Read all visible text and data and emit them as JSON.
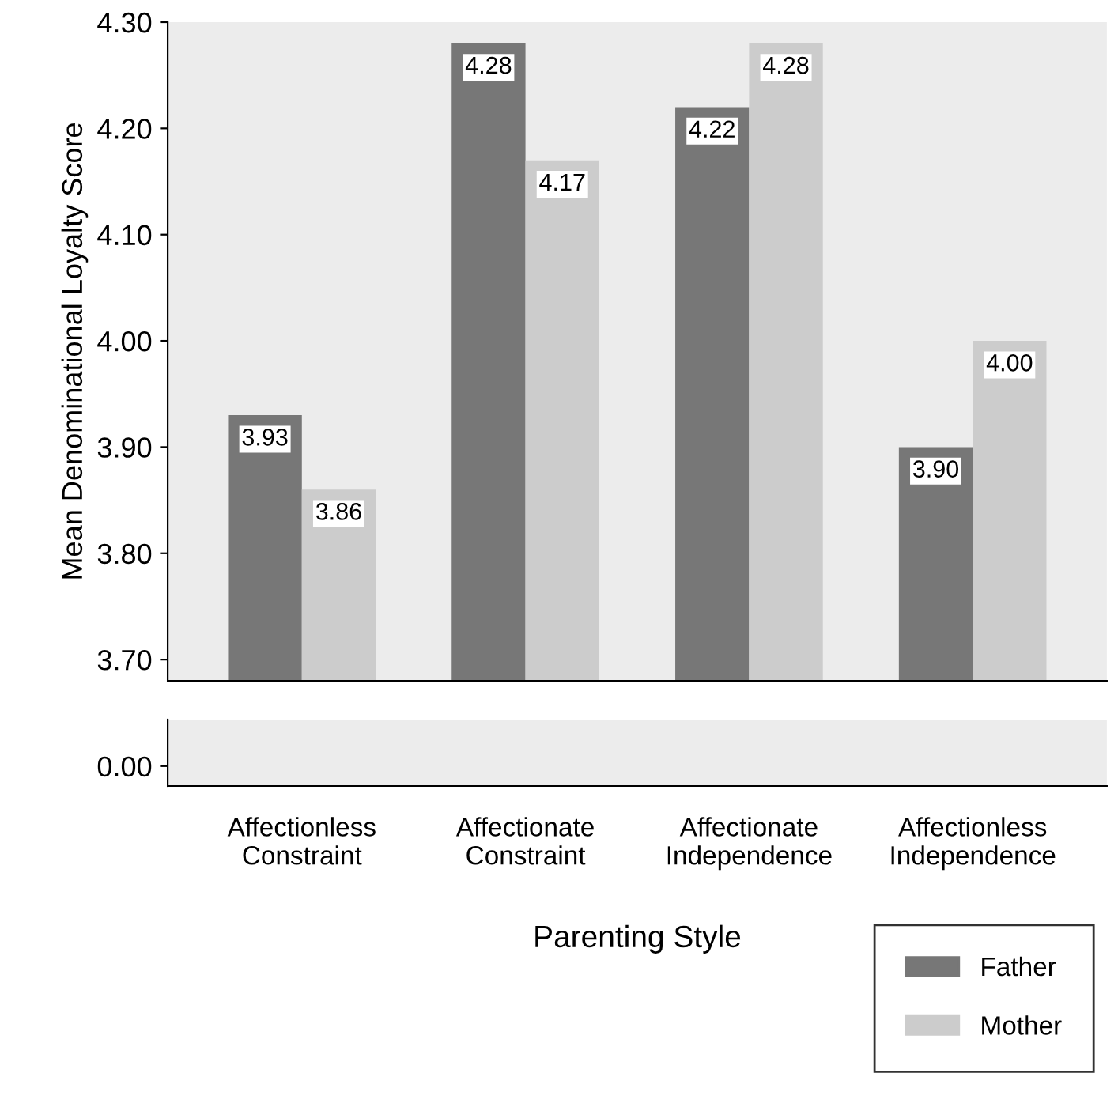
{
  "chart_data": {
    "type": "bar",
    "ylabel": "Mean Denominational Loyalty Score",
    "xlabel": "Parenting Style",
    "categories": [
      "Affectionless\nConstraint",
      "Affectionate\nConstraint",
      "Affectionate\nIndependence",
      "Affectionless\nIndependence"
    ],
    "series": [
      {
        "name": "Father",
        "color": "#777777",
        "values": [
          3.93,
          4.28,
          4.22,
          3.9
        ],
        "value_labels": [
          "3.93",
          "4.28",
          "4.22",
          "3.90"
        ]
      },
      {
        "name": "Mother",
        "color": "#cccccc",
        "values": [
          3.86,
          4.17,
          4.28,
          4.0
        ],
        "value_labels": [
          "3.86",
          "4.17",
          "4.28",
          "4.00"
        ]
      }
    ],
    "ylim": [
      3.68,
      4.3
    ],
    "yticks": [
      {
        "value": 3.7,
        "label": "3.70"
      },
      {
        "value": 3.8,
        "label": "3.80"
      },
      {
        "value": 3.9,
        "label": "3.90"
      },
      {
        "value": 4.0,
        "label": "4.00"
      },
      {
        "value": 4.1,
        "label": "4.10"
      },
      {
        "value": 4.2,
        "label": "4.20"
      },
      {
        "value": 4.3,
        "label": "4.30"
      }
    ],
    "annotations": [
      "0.00"
    ],
    "legend": "bottom right"
  }
}
